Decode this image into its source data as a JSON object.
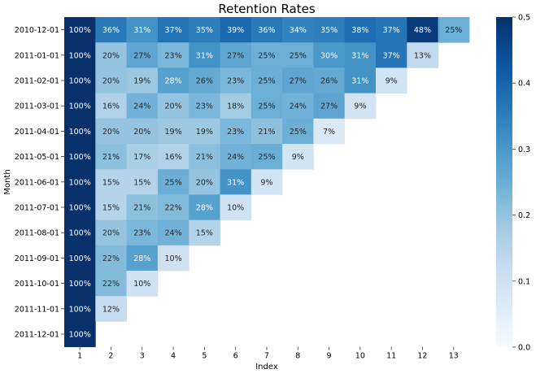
{
  "chart_data": {
    "type": "heatmap",
    "title": "Retention Rates",
    "xlabel": "Index",
    "ylabel": "Month",
    "x_categories": [
      "1",
      "2",
      "3",
      "4",
      "5",
      "6",
      "7",
      "8",
      "9",
      "10",
      "11",
      "12",
      "13"
    ],
    "y_categories": [
      "2010-12-01",
      "2011-01-01",
      "2011-02-01",
      "2011-03-01",
      "2011-04-01",
      "2011-05-01",
      "2011-06-01",
      "2011-07-01",
      "2011-08-01",
      "2011-09-01",
      "2011-10-01",
      "2011-11-01",
      "2011-12-01"
    ],
    "values": [
      [
        1.0,
        0.36,
        0.31,
        0.37,
        0.35,
        0.39,
        0.36,
        0.34,
        0.35,
        0.38,
        0.37,
        0.48,
        0.25
      ],
      [
        1.0,
        0.2,
        0.27,
        0.23,
        0.31,
        0.27,
        0.25,
        0.25,
        0.3,
        0.31,
        0.37,
        0.13
      ],
      [
        1.0,
        0.2,
        0.19,
        0.28,
        0.26,
        0.23,
        0.25,
        0.27,
        0.26,
        0.31,
        0.09
      ],
      [
        1.0,
        0.16,
        0.24,
        0.2,
        0.23,
        0.18,
        0.25,
        0.24,
        0.27,
        0.09
      ],
      [
        1.0,
        0.2,
        0.2,
        0.19,
        0.19,
        0.23,
        0.21,
        0.25,
        0.07
      ],
      [
        1.0,
        0.21,
        0.17,
        0.16,
        0.21,
        0.24,
        0.25,
        0.09
      ],
      [
        1.0,
        0.15,
        0.15,
        0.25,
        0.2,
        0.31,
        0.09
      ],
      [
        1.0,
        0.15,
        0.21,
        0.22,
        0.28,
        0.1
      ],
      [
        1.0,
        0.2,
        0.23,
        0.24,
        0.15
      ],
      [
        1.0,
        0.22,
        0.28,
        0.1
      ],
      [
        1.0,
        0.22,
        0.1
      ],
      [
        1.0,
        0.12
      ],
      [
        1.0
      ]
    ],
    "value_format": "percent",
    "colormap": "Blues",
    "colorbar": {
      "vmin": 0.0,
      "vmax": 0.5,
      "ticks": [
        "0.0",
        "0.1",
        "0.2",
        "0.3",
        "0.4",
        "0.5"
      ]
    }
  }
}
